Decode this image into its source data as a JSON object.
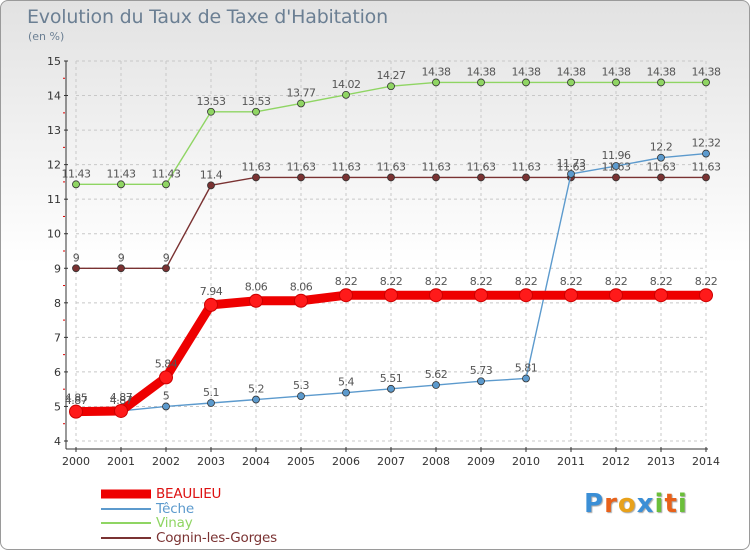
{
  "title": "Evolution du Taux de Taxe d'Habitation",
  "subtitle": "(en %)",
  "logo": {
    "letters": [
      "P",
      "r",
      "o",
      "x",
      "i",
      "t",
      "i"
    ],
    "colors": [
      "#3b8fd6",
      "#e8611a",
      "#e8a11a",
      "#3b8fd6",
      "#6bbf3a",
      "#e8611a",
      "#6bbf3a"
    ]
  },
  "chart_data": {
    "type": "line",
    "title": "Evolution du Taux de Taxe d'Habitation",
    "ylabel": "(en %)",
    "xlabel": "",
    "x": [
      "2000",
      "2001",
      "2002",
      "2003",
      "2004",
      "2005",
      "2006",
      "2007",
      "2008",
      "2009",
      "2010",
      "2011",
      "2012",
      "2013",
      "2014"
    ],
    "ylim": [
      4,
      15
    ],
    "yticks": [
      "4",
      "5",
      "6",
      "7",
      "8",
      "9",
      "10",
      "11",
      "12",
      "13",
      "14",
      "15"
    ],
    "grid": true,
    "legend_position": "bottom-left",
    "series": [
      {
        "name": "BEAULIEU",
        "color": "#ee0000",
        "style": "thick",
        "values": [
          4.85,
          4.87,
          5.84,
          7.94,
          8.06,
          8.06,
          8.22,
          8.22,
          8.22,
          8.22,
          8.22,
          8.22,
          8.22,
          8.22,
          8.22
        ],
        "labels": [
          "4.85",
          "4.87",
          "5.84",
          "7.94",
          "8.06",
          "8.06",
          "8.22",
          "8.22",
          "8.22",
          "8.22",
          "8.22",
          "8.22",
          "8.22",
          "8.22",
          "8.22"
        ]
      },
      {
        "name": "Têche",
        "color": "#5c9acd",
        "style": "thin",
        "values": [
          4.87,
          4.87,
          5,
          5.1,
          5.2,
          5.3,
          5.4,
          5.51,
          5.62,
          5.73,
          5.81,
          11.73,
          11.96,
          12.2,
          12.32
        ],
        "labels": [
          "4.87",
          "4.87",
          "5",
          "5.1",
          "5.2",
          "5.3",
          "5.4",
          "5.51",
          "5.62",
          "5.73",
          "5.81",
          "11.73",
          "11.96",
          "12.2",
          "12.32"
        ]
      },
      {
        "name": "Vinay",
        "color": "#8fd563",
        "style": "thin",
        "values": [
          11.43,
          11.43,
          11.43,
          13.53,
          13.53,
          13.77,
          14.02,
          14.27,
          14.38,
          14.38,
          14.38,
          14.38,
          14.38,
          14.38,
          14.38
        ],
        "labels": [
          "11.43",
          "11.43",
          "11.43",
          "13.53",
          "13.53",
          "13.77",
          "14.02",
          "14.27",
          "14.38",
          "14.38",
          "14.38",
          "14.38",
          "14.38",
          "14.38",
          "14.38"
        ]
      },
      {
        "name": "Cognin-les-Gorges",
        "color": "#7a3232",
        "style": "thin",
        "values": [
          9,
          9,
          9,
          11.4,
          11.63,
          11.63,
          11.63,
          11.63,
          11.63,
          11.63,
          11.63,
          11.63,
          11.63,
          11.63,
          11.63
        ],
        "labels": [
          "9",
          "9",
          "9",
          "11.4",
          "11.63",
          "11.63",
          "11.63",
          "11.63",
          "11.63",
          "11.63",
          "11.63",
          "11.63",
          "11.63",
          "11.63",
          "11.63"
        ]
      }
    ]
  }
}
